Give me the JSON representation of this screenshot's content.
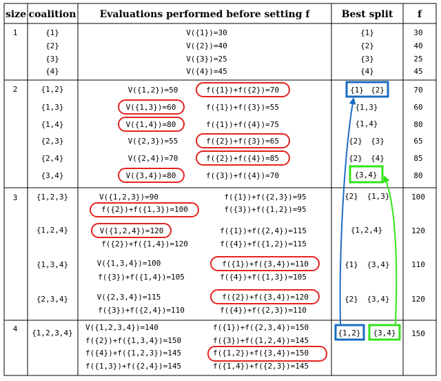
{
  "headers": {
    "size": "size",
    "coalition": "coalition",
    "evaluations": "Evaluations performed before setting f",
    "best": "Best split",
    "f": "f"
  },
  "colors": {
    "red": "#e3231f",
    "blue": "#1a6cc0",
    "green": "#33e31a"
  },
  "groups": [
    {
      "size": "1",
      "rows": [
        {
          "coalition": "{1}",
          "evals": [
            "V({1})=30"
          ],
          "best": [
            "{1}"
          ],
          "f": "30"
        },
        {
          "coalition": "{2}",
          "evals": [
            "V({2})=40"
          ],
          "best": [
            "{2}"
          ],
          "f": "40"
        },
        {
          "coalition": "{3}",
          "evals": [
            "V({3})=25"
          ],
          "best": [
            "{3}"
          ],
          "f": "25"
        },
        {
          "coalition": "{4}",
          "evals": [
            "V({4})=45"
          ],
          "best": [
            "{4}"
          ],
          "f": "45"
        }
      ]
    },
    {
      "size": "2",
      "rows": [
        {
          "coalition": "{1,2}",
          "evals": [
            "V({1,2})=50",
            "f({1})+f({2})=70"
          ],
          "best": [
            "{1}",
            "{2}"
          ],
          "f": "70"
        },
        {
          "coalition": "{1,3}",
          "evals": [
            "V({1,3})=60",
            "f({1})+f({3})=55"
          ],
          "best": [
            "{1,3}"
          ],
          "f": "60"
        },
        {
          "coalition": "{1,4}",
          "evals": [
            "V({1,4})=80",
            "f({1})+f({4})=75"
          ],
          "best": [
            "{1,4}"
          ],
          "f": "80"
        },
        {
          "coalition": "{2,3}",
          "evals": [
            "V({2,3})=55",
            "f({2})+f({3})=65"
          ],
          "best": [
            "{2}",
            "{3}"
          ],
          "f": "65"
        },
        {
          "coalition": "{2,4}",
          "evals": [
            "V({2,4})=70",
            "f({2})+f({4})=85"
          ],
          "best": [
            "{2}",
            "{4}"
          ],
          "f": "85"
        },
        {
          "coalition": "{3,4}",
          "evals": [
            "V({3,4})=80",
            "f({3})+f({4})=70"
          ],
          "best": [
            "{3,4}"
          ],
          "f": "80"
        }
      ]
    },
    {
      "size": "3",
      "rows": [
        {
          "coalition": "{1,2,3}",
          "evals": [
            "V({1,2,3})=90",
            "f({1})+f({2,3})=95",
            "f({2})+f({1,3})=100",
            "f({3})+f({1,2})=95"
          ],
          "best": [
            "{2}",
            "{1,3}"
          ],
          "f": "100"
        },
        {
          "coalition": "{1,2,4}",
          "evals": [
            "V({1,2,4})=120",
            "f({1})+f({2,4})=115",
            "f({2})+f({1,4})=120",
            "f({4})+f({1,2})=115"
          ],
          "best": [
            "{1,2,4}"
          ],
          "f": "120"
        },
        {
          "coalition": "{1,3,4}",
          "evals": [
            "V({1,3,4})=100",
            "f({1})+f({3,4})=110",
            "f({3})+f({1,4})=105",
            "f({4})+f({1,3})=105"
          ],
          "best": [
            "{1}",
            "{3,4}"
          ],
          "f": "110"
        },
        {
          "coalition": "{2,3,4}",
          "evals": [
            "V({2,3,4})=115",
            "f({2})+f({3,4})=120",
            "f({3})+f({2,4})=110",
            "f({4})+f({2,3})=110"
          ],
          "best": [
            "{2}",
            "{3,4}"
          ],
          "f": "120"
        }
      ]
    },
    {
      "size": "4",
      "rows": [
        {
          "coalition": "{1,2,3,4}",
          "evals": [
            "V({1,2,3,4})=140",
            "f({1})+f({2,3,4})=150",
            "f({2})+f({1,3,4})=150",
            "f({3})+f({1,2,4})=145",
            "f({4})+f({1,2,3})=145",
            "f({1,2})+f({3,4})=150",
            "f({1,3})+f({2,4})=145",
            "f({1,4})+f({2,3})=145"
          ],
          "best": [
            "{1,2}",
            "{3,4}"
          ],
          "f": "150"
        }
      ]
    }
  ]
}
